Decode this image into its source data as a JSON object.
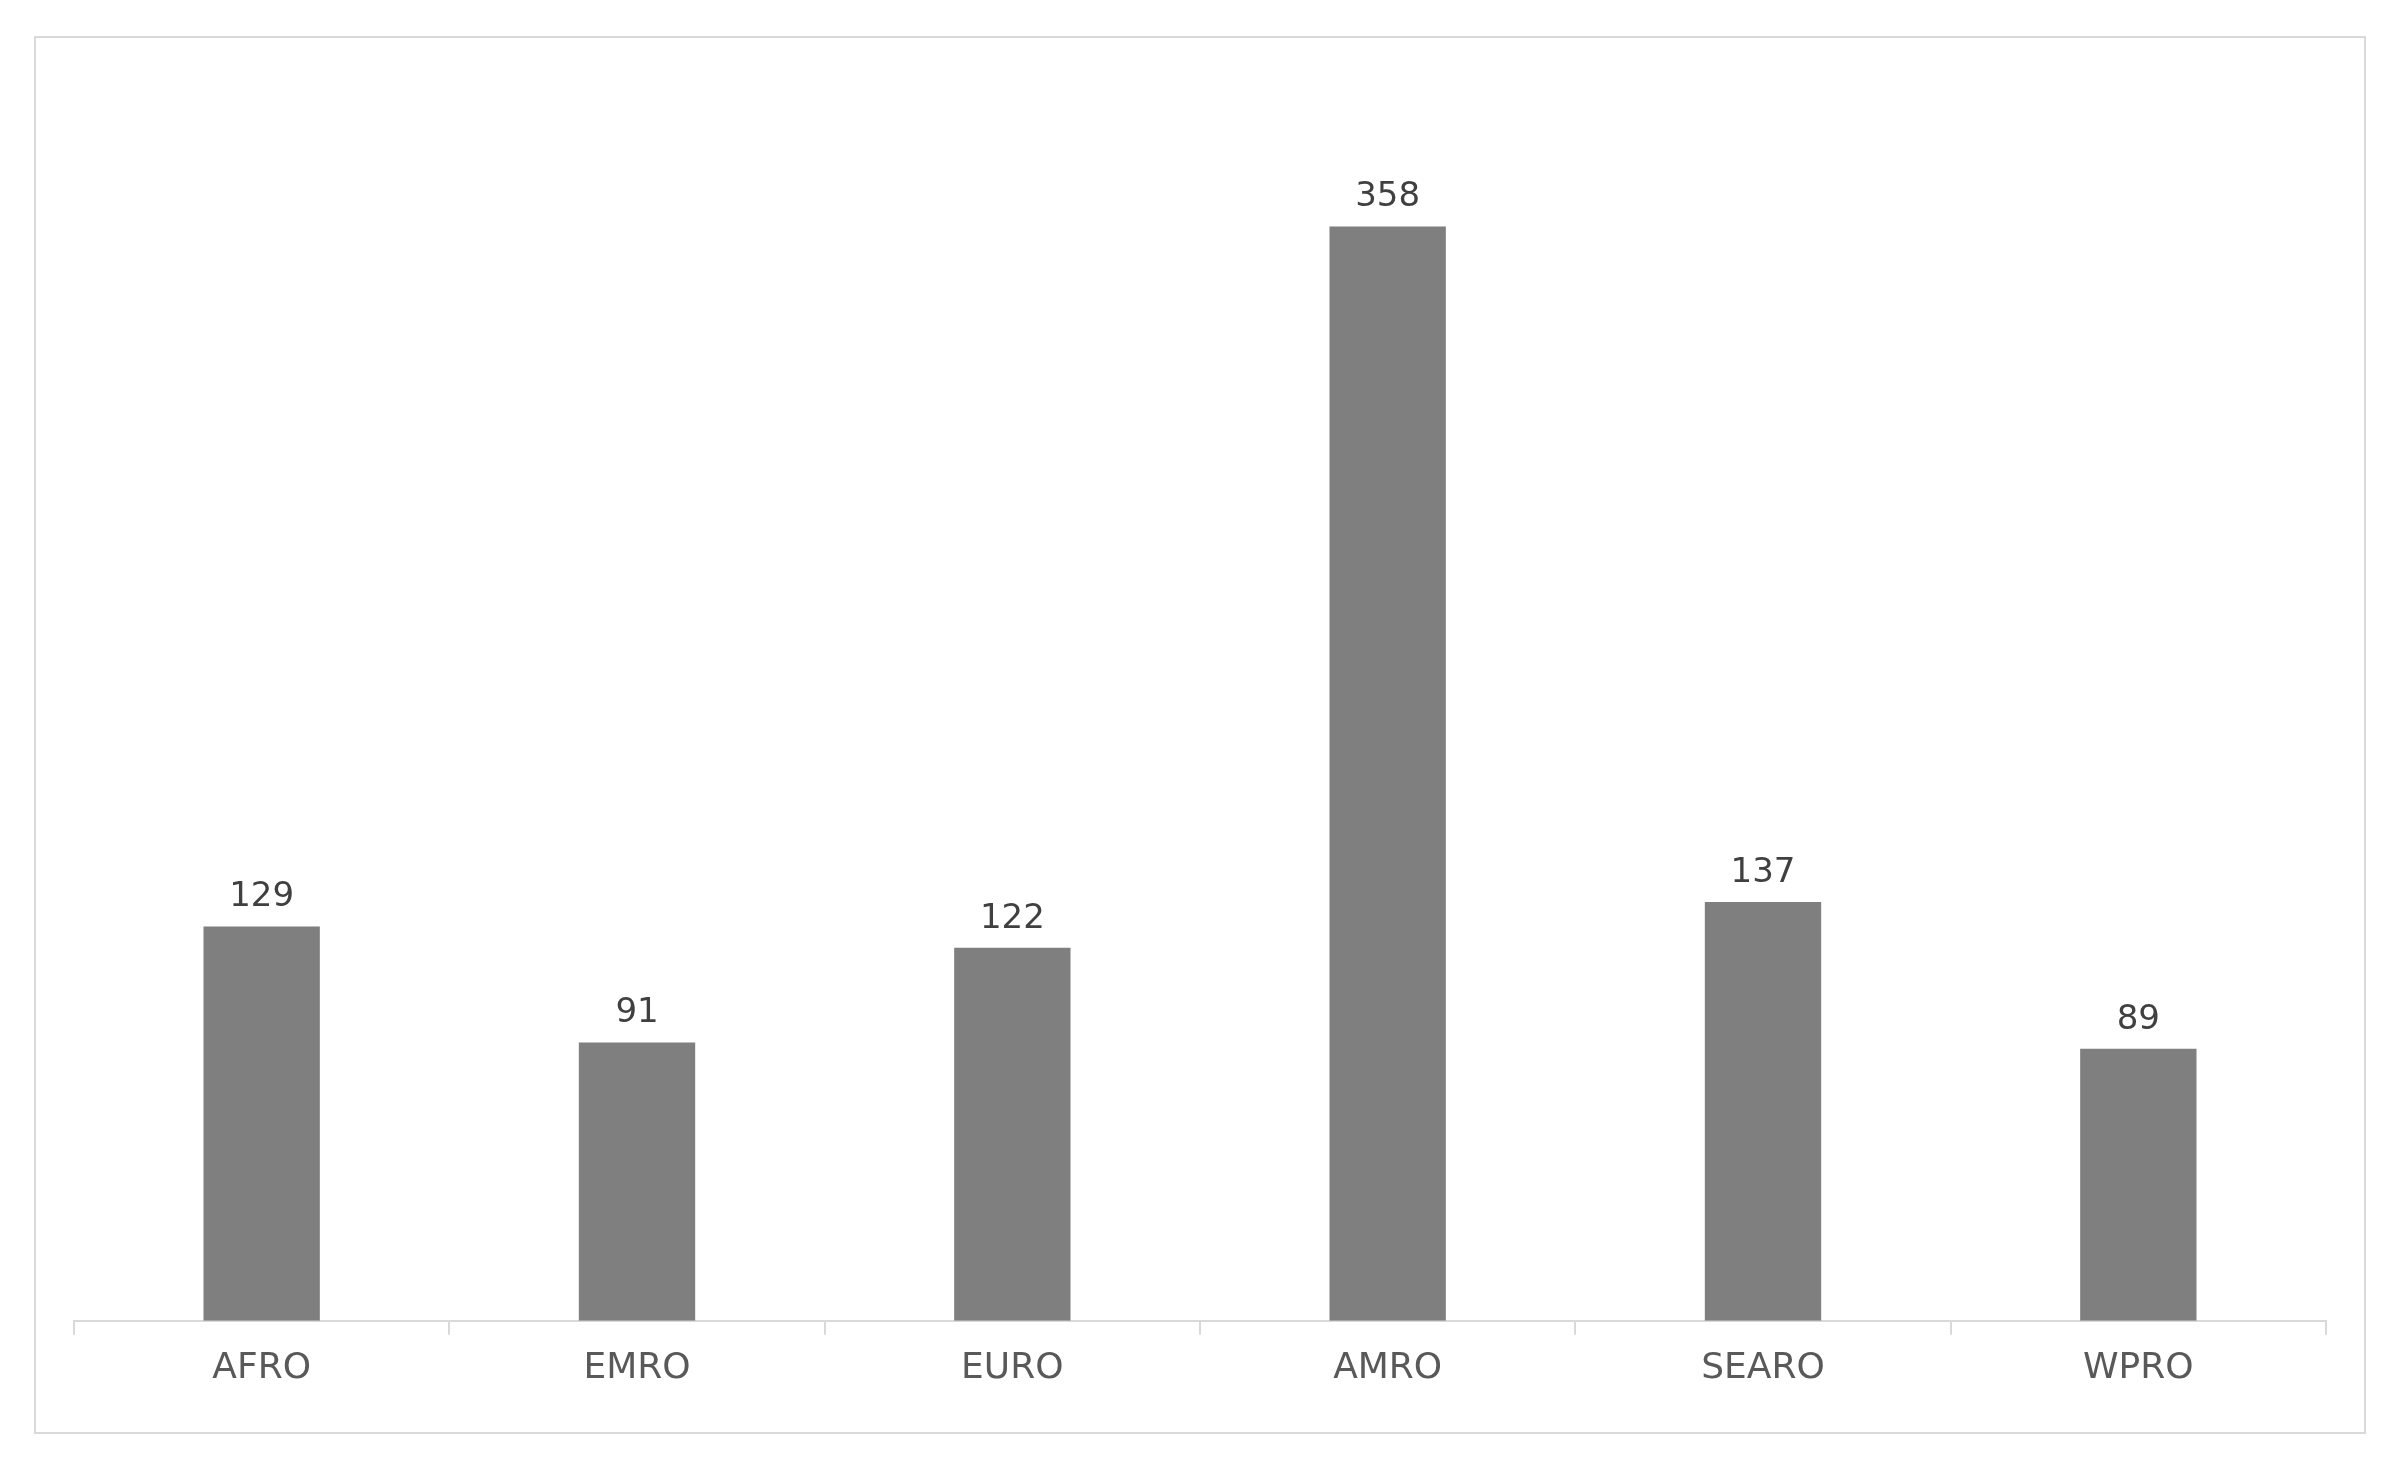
{
  "chart_data": {
    "type": "bar",
    "categories": [
      "AFRO",
      "EMRO",
      "EURO",
      "AMRO",
      "SEARO",
      "WPRO"
    ],
    "values": [
      129,
      91,
      122,
      358,
      137,
      89
    ],
    "color": "#7f7f7f",
    "data_labels": true,
    "tick_labels": "x",
    "grid": false,
    "legend": false
  }
}
